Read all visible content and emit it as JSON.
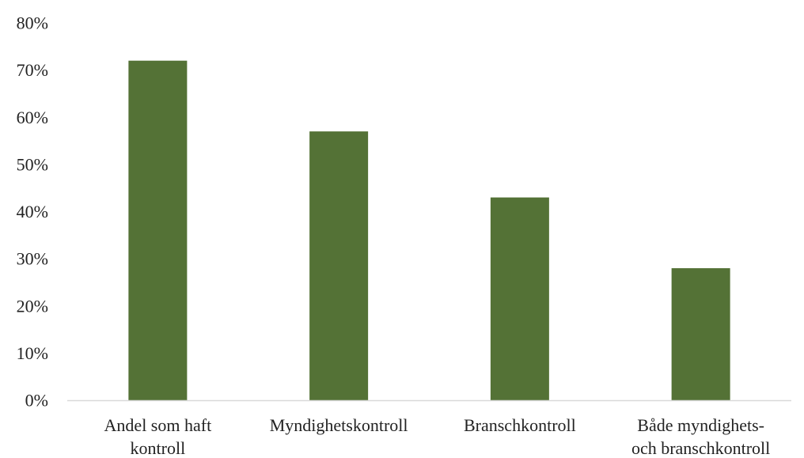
{
  "chart_data": {
    "type": "bar",
    "categories": [
      [
        "Andel som haft",
        "kontroll"
      ],
      [
        "Myndighetskontroll"
      ],
      [
        "Branschkontroll"
      ],
      [
        "Både myndighets-",
        "och branschkontroll"
      ]
    ],
    "values": [
      72,
      57,
      43,
      28
    ],
    "ylim": [
      0,
      80
    ],
    "yticks": [
      0,
      10,
      20,
      30,
      40,
      50,
      60,
      70,
      80
    ],
    "ytick_labels": [
      "0%",
      "10%",
      "20%",
      "30%",
      "40%",
      "50%",
      "60%",
      "70%",
      "80%"
    ],
    "y_unit": "%",
    "title": "",
    "xlabel": "",
    "ylabel": "",
    "grid": false,
    "legend": false,
    "bar_color": "#547236",
    "axis_color": "#d9d9d9"
  }
}
